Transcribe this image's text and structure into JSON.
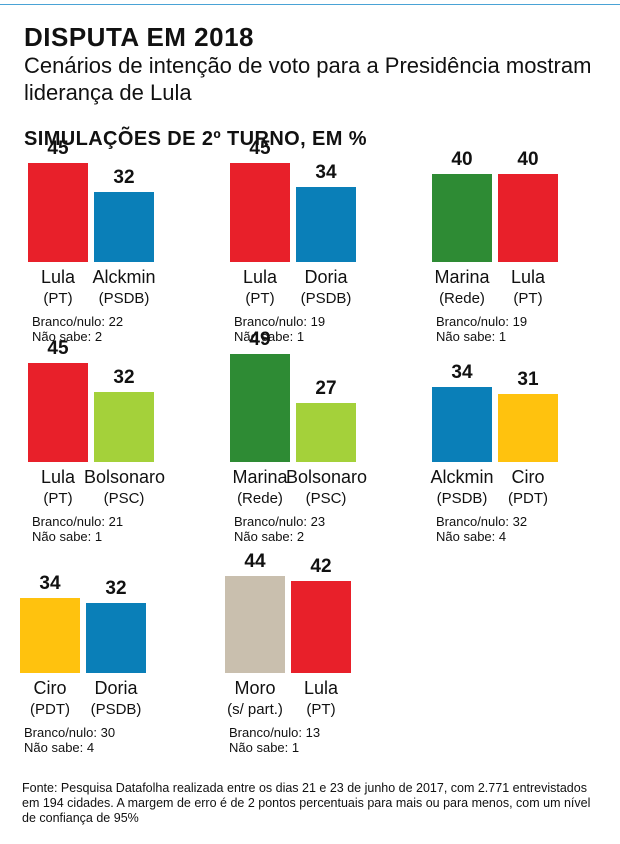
{
  "header": {
    "title": "DISPUTA EM 2018",
    "subtitle": "Cenários de intenção de voto para a Presidência mostram liderança de Lula",
    "section": "SIMULAÇÕES DE 2º TURNO, EM %"
  },
  "footer": {
    "source": "Fonte: Pesquisa Datafolha realizada entre os dias 21 e 23 de junho de 2017, com 2.771 entrevistados em 194 cidades. A margem de erro é de 2 pontos percentuais para mais ou para menos, com um nível de confiança de 95%"
  },
  "chart_data": [
    {
      "type": "bar",
      "categories": [
        "Lula",
        "Alckmin"
      ],
      "parties": [
        "(PT)",
        "(PSDB)"
      ],
      "values": [
        45,
        32
      ],
      "colors": [
        "#e8202a",
        "#0a7fb8"
      ],
      "branco_nulo": "Branco/nulo: 22",
      "nao_sabe": "Não sabe: 2"
    },
    {
      "type": "bar",
      "categories": [
        "Lula",
        "Doria"
      ],
      "parties": [
        "(PT)",
        "(PSDB)"
      ],
      "values": [
        45,
        34
      ],
      "colors": [
        "#e8202a",
        "#0a7fb8"
      ],
      "branco_nulo": "Branco/nulo: 19",
      "nao_sabe": "Não sabe: 1"
    },
    {
      "type": "bar",
      "categories": [
        "Marina",
        "Lula"
      ],
      "parties": [
        "(Rede)",
        "(PT)"
      ],
      "values": [
        40,
        40
      ],
      "colors": [
        "#2e8b34",
        "#e8202a"
      ],
      "branco_nulo": "Branco/nulo: 19",
      "nao_sabe": "Não sabe: 1"
    },
    {
      "type": "bar",
      "categories": [
        "Lula",
        "Bolsonaro"
      ],
      "parties": [
        "(PT)",
        "(PSC)"
      ],
      "values": [
        45,
        32
      ],
      "colors": [
        "#e8202a",
        "#a4d13a"
      ],
      "branco_nulo": "Branco/nulo: 21",
      "nao_sabe": "Não sabe: 1"
    },
    {
      "type": "bar",
      "categories": [
        "Marina",
        "Bolsonaro"
      ],
      "parties": [
        "(Rede)",
        "(PSC)"
      ],
      "values": [
        49,
        27
      ],
      "colors": [
        "#2e8b34",
        "#a4d13a"
      ],
      "branco_nulo": "Branco/nulo: 23",
      "nao_sabe": "Não sabe: 2"
    },
    {
      "type": "bar",
      "categories": [
        "Alckmin",
        "Ciro"
      ],
      "parties": [
        "(PSDB)",
        "(PDT)"
      ],
      "values": [
        34,
        31
      ],
      "colors": [
        "#0a7fb8",
        "#ffc20e"
      ],
      "branco_nulo": "Branco/nulo: 32",
      "nao_sabe": "Não sabe: 4"
    },
    {
      "type": "bar",
      "categories": [
        "Ciro",
        "Doria"
      ],
      "parties": [
        "(PDT)",
        "(PSDB)"
      ],
      "values": [
        34,
        32
      ],
      "colors": [
        "#ffc20e",
        "#0a7fb8"
      ],
      "branco_nulo": "Branco/nulo: 30",
      "nao_sabe": "Não sabe: 4"
    },
    {
      "type": "bar",
      "categories": [
        "Moro",
        "Lula"
      ],
      "parties": [
        "(s/ part.)",
        "(PT)"
      ],
      "values": [
        44,
        42
      ],
      "colors": [
        "#c9bfae",
        "#e8202a"
      ],
      "branco_nulo": "Branco/nulo: 13",
      "nao_sabe": "Não sabe: 1"
    }
  ]
}
